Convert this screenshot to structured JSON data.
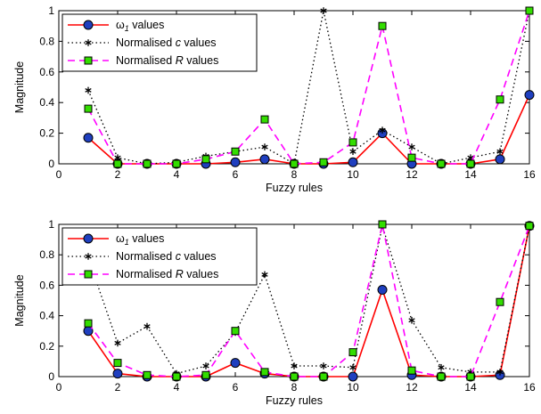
{
  "chart_data": [
    {
      "type": "line",
      "xlabel": "Fuzzy rules",
      "ylabel": "Magnitude",
      "xlim": [
        0,
        16
      ],
      "ylim": [
        0,
        1
      ],
      "xticks": [
        "0",
        "2",
        "4",
        "6",
        "8",
        "10",
        "12",
        "14",
        "16"
      ],
      "yticks": [
        "0",
        "0.2",
        "0.4",
        "0.6",
        "0.8",
        "1"
      ],
      "grid": false,
      "legend_position": "top-left",
      "x": [
        1,
        2,
        3,
        4,
        5,
        6,
        7,
        8,
        9,
        10,
        11,
        12,
        13,
        14,
        15,
        16
      ],
      "series": [
        {
          "name_parts": [
            "ω",
            "1",
            " values"
          ],
          "color": "#ff0000",
          "marker": "circle",
          "marker_fill": "#1f3fbf",
          "style": "solid",
          "values": [
            0.17,
            0.0,
            0.0,
            0.0,
            0.0,
            0.01,
            0.03,
            0.0,
            0.0,
            0.01,
            0.2,
            0.0,
            0.0,
            0.0,
            0.03,
            0.45
          ]
        },
        {
          "name_parts": [
            "Normalised ",
            "c",
            " values"
          ],
          "color": "#000000",
          "marker": "asterisk",
          "style": "dotted",
          "values": [
            0.48,
            0.04,
            0.0,
            0.01,
            0.05,
            0.08,
            0.11,
            0.0,
            1.0,
            0.08,
            0.22,
            0.11,
            0.0,
            0.04,
            0.08,
            1.0
          ]
        },
        {
          "name_parts": [
            "Normalised ",
            "R",
            " values"
          ],
          "color": "#ff00ff",
          "marker": "square",
          "marker_fill": "#33dd00",
          "style": "dashed",
          "values": [
            0.36,
            0.0,
            0.0,
            0.0,
            0.03,
            0.08,
            0.29,
            0.0,
            0.01,
            0.14,
            0.9,
            0.04,
            0.0,
            0.0,
            0.42,
            1.0
          ]
        }
      ]
    },
    {
      "type": "line",
      "xlabel": "Fuzzy rules",
      "ylabel": "Magnitude",
      "xlim": [
        0,
        16
      ],
      "ylim": [
        0,
        1
      ],
      "xticks": [
        "0",
        "2",
        "4",
        "6",
        "8",
        "10",
        "12",
        "14",
        "16"
      ],
      "yticks": [
        "0",
        "0.2",
        "0.4",
        "0.6",
        "0.8",
        "1"
      ],
      "grid": false,
      "legend_position": "top-left",
      "x": [
        1,
        2,
        3,
        4,
        5,
        6,
        7,
        8,
        9,
        10,
        11,
        12,
        13,
        14,
        15,
        16
      ],
      "series": [
        {
          "name_parts": [
            "ω",
            "1",
            " values"
          ],
          "color": "#ff0000",
          "marker": "circle",
          "marker_fill": "#1f3fbf",
          "style": "solid",
          "values": [
            0.3,
            0.02,
            0.0,
            0.0,
            0.0,
            0.09,
            0.02,
            0.0,
            0.0,
            0.0,
            0.57,
            0.01,
            0.0,
            0.0,
            0.01,
            0.99
          ]
        },
        {
          "name_parts": [
            "Normalised ",
            "c",
            " values"
          ],
          "color": "#000000",
          "marker": "asterisk",
          "style": "dotted",
          "values": [
            0.78,
            0.22,
            0.33,
            0.02,
            0.07,
            0.29,
            0.67,
            0.07,
            0.07,
            0.06,
            0.99,
            0.37,
            0.06,
            0.03,
            0.03,
            0.99
          ]
        },
        {
          "name_parts": [
            "Normalised ",
            "R",
            " values"
          ],
          "color": "#ff00ff",
          "marker": "square",
          "marker_fill": "#33dd00",
          "style": "dashed",
          "values": [
            0.35,
            0.09,
            0.01,
            0.0,
            0.01,
            0.3,
            0.03,
            0.0,
            0.0,
            0.16,
            1.0,
            0.04,
            0.0,
            0.0,
            0.49,
            0.99
          ]
        }
      ]
    }
  ]
}
